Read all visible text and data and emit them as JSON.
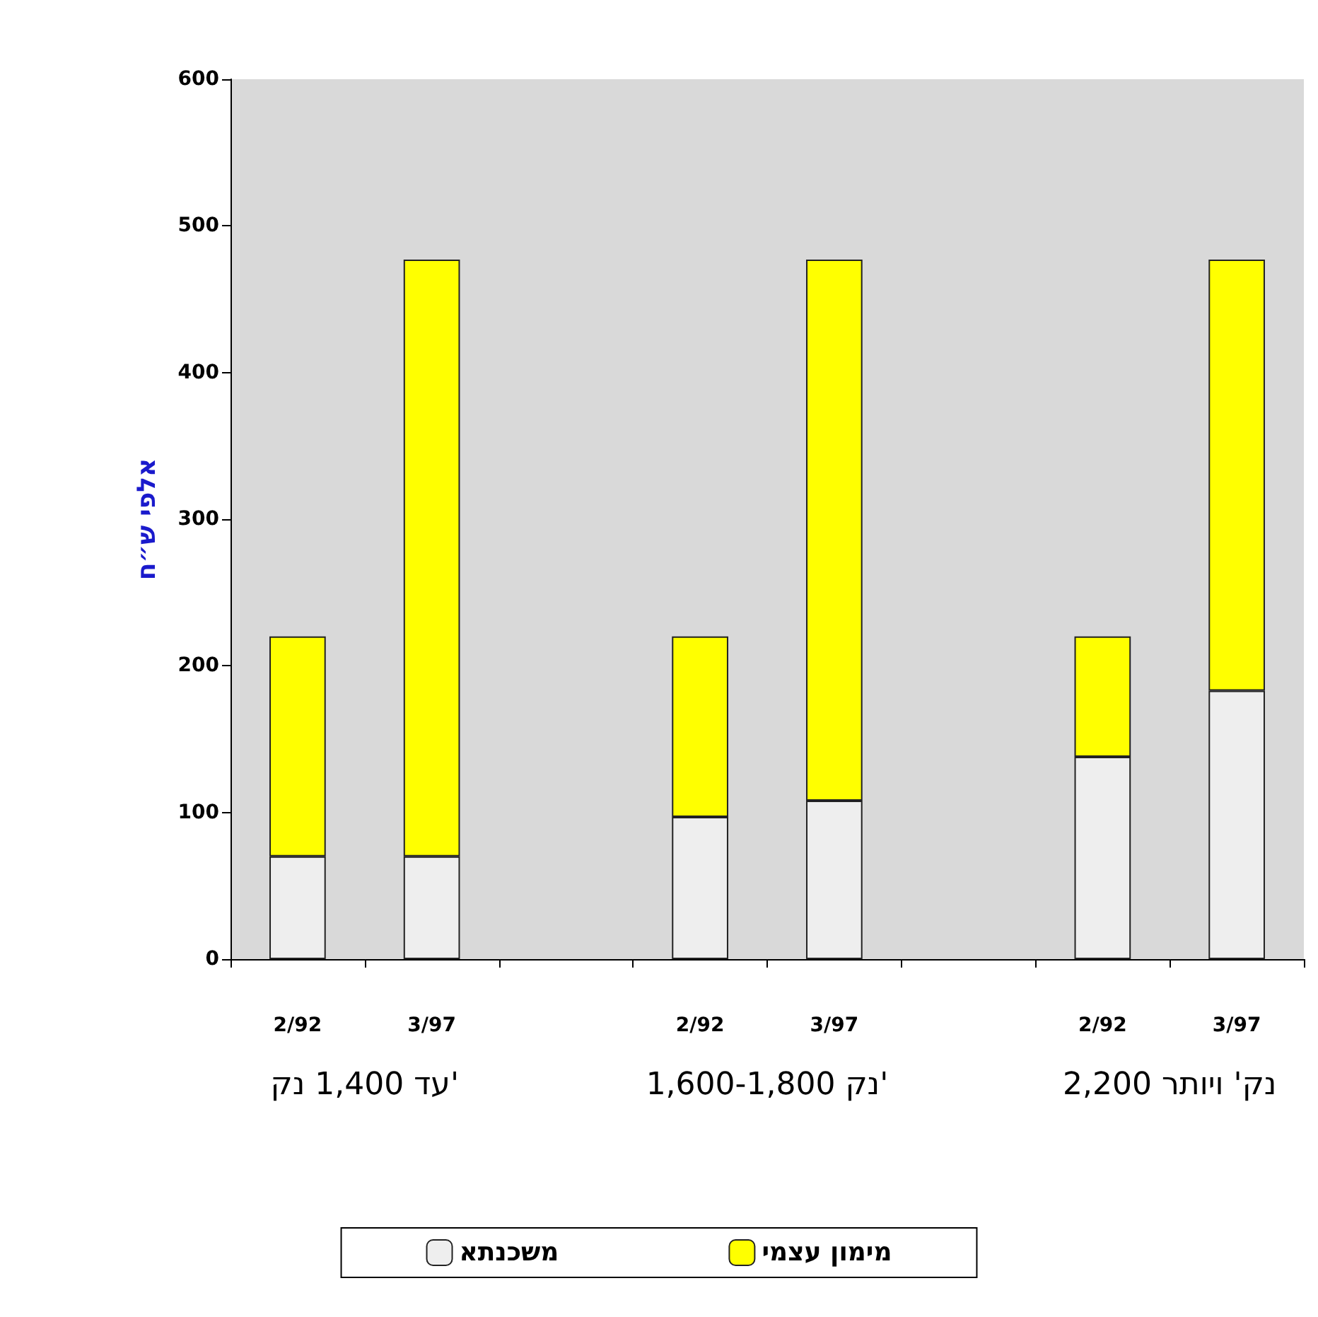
{
  "chart_data": {
    "type": "bar",
    "stacked": true,
    "ylabel": "אלפי ש״ח",
    "categories": [
      "2/92",
      "3/97",
      null,
      "2/92",
      "3/97",
      null,
      "2/92",
      "3/97"
    ],
    "series": [
      {
        "name": "משכנתא",
        "color": "#eeeeee",
        "values": [
          70,
          70,
          null,
          97,
          108,
          null,
          138,
          183
        ]
      },
      {
        "name": "מימון עצמי",
        "color": "#ffff00",
        "values": [
          150,
          407,
          null,
          123,
          369,
          null,
          82,
          294
        ]
      }
    ],
    "ylim": [
      0,
      600
    ],
    "yticks": [
      0,
      100,
      200,
      300,
      400,
      500,
      600
    ],
    "grid": false,
    "legend": "bottom",
    "annotations": [
      "עד 1,400 נק'",
      "1,600-1,800 נק'",
      "2,200 נק' ויותר"
    ]
  }
}
